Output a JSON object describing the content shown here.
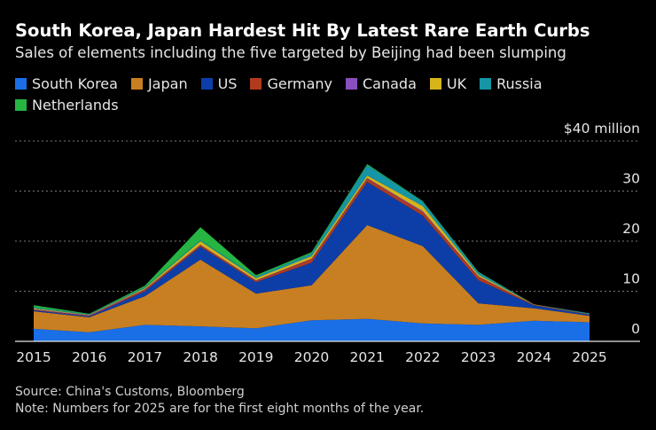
{
  "chart_data": {
    "type": "area",
    "stacked": true,
    "title": "South Korea, Japan Hardest Hit By Latest Rare Earth Curbs",
    "subtitle": "Sales of elements including the five targeted by Beijing had been slumping",
    "x": [
      2015,
      2016,
      2017,
      2018,
      2019,
      2020,
      2021,
      2022,
      2023,
      2024,
      2025
    ],
    "series": [
      {
        "name": "South Korea",
        "color": "#1a6ee6",
        "values": [
          2.5,
          1.8,
          3.3,
          3.0,
          2.6,
          4.2,
          4.5,
          3.6,
          3.3,
          4.1,
          3.8
        ]
      },
      {
        "name": "Japan",
        "color": "#c87f22",
        "values": [
          3.5,
          3.0,
          5.7,
          13.3,
          6.9,
          7.0,
          18.7,
          15.4,
          4.3,
          2.5,
          1.3
        ]
      },
      {
        "name": "US",
        "color": "#0d3ea8",
        "values": [
          0.2,
          0.2,
          1.0,
          2.6,
          2.3,
          4.5,
          8.6,
          6.1,
          4.6,
          0.6,
          0.2
        ]
      },
      {
        "name": "Germany",
        "color": "#b03a1e",
        "values": [
          0.1,
          0.1,
          0.3,
          0.3,
          0.3,
          0.7,
          0.7,
          0.7,
          0.7,
          0.1,
          0.1
        ]
      },
      {
        "name": "Canada",
        "color": "#8a4fbf",
        "values": [
          0.1,
          0.1,
          0.1,
          0.1,
          0.1,
          0.1,
          0.1,
          0.2,
          0.1,
          0.0,
          0.0
        ]
      },
      {
        "name": "UK",
        "color": "#d6b41a",
        "values": [
          0.2,
          0.1,
          0.2,
          0.7,
          0.4,
          0.5,
          0.5,
          1.0,
          0.3,
          0.1,
          0.0
        ]
      },
      {
        "name": "Russia",
        "color": "#1595a6",
        "values": [
          0.2,
          0.1,
          0.2,
          0.2,
          0.3,
          0.5,
          2.1,
          0.9,
          0.5,
          0.0,
          0.2
        ]
      },
      {
        "name": "Netherlands",
        "color": "#26b443",
        "values": [
          0.4,
          0.1,
          0.3,
          2.6,
          0.3,
          0.3,
          0.2,
          0.1,
          0.1,
          0.0,
          0.0
        ]
      }
    ],
    "y_unit_label": "$40 million",
    "y_ticks": [
      0,
      10,
      20,
      30,
      40
    ],
    "y_tick_labels": [
      "0",
      "10",
      "20",
      "30",
      "$40 million"
    ],
    "ylim": [
      0,
      40
    ],
    "xlim": [
      2015,
      2025
    ],
    "grid": true,
    "legend": "top-left"
  },
  "footer": {
    "source": "Source: China's Customs, Bloomberg",
    "note": "Note: Numbers for 2025 are for the first eight months of the year."
  }
}
